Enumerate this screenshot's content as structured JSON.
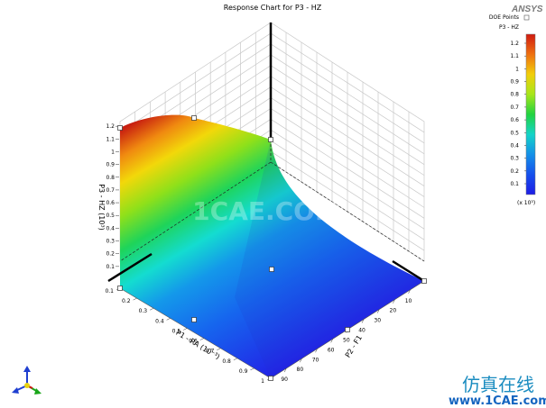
{
  "header": {
    "title": "Response Chart for P3 - HZ",
    "logo_text": "ANSYS"
  },
  "legend": {
    "doe_points_label": "DOE Points",
    "series_label": "P3 - HZ",
    "scale_note": "(x 10³)",
    "colorbar_ticks": [
      "1.2",
      "1.1",
      "1",
      "0.9",
      "0.8",
      "0.7",
      "0.6",
      "0.5",
      "0.4",
      "0.3",
      "0.2",
      "0.1"
    ],
    "colorbar_colors": [
      "#d01a10",
      "#ee7010",
      "#f2cf0a",
      "#a7e61a",
      "#21d340",
      "#14d4c8",
      "#1490e8",
      "#1650ec",
      "#1d1ce6"
    ]
  },
  "watermark": {
    "center_text": "1CAE.COM",
    "brand_cn": "仿真在线",
    "brand_url": "www.1CAE.com",
    "brand_url_color": "#1565c0"
  },
  "chart_data": {
    "type": "surface",
    "title": "Response Chart for P3 - HZ",
    "axes": {
      "x": {
        "label": "P2 - F1",
        "range": [
          1,
          100
        ],
        "ticks": [
          "10",
          "20",
          "30",
          "40",
          "50",
          "60",
          "70",
          "80",
          "90"
        ]
      },
      "y": {
        "label": "P1 - RA (10⁻³)",
        "range": [
          0.1,
          1
        ],
        "ticks": [
          "0.1",
          "0.2",
          "0.3",
          "0.4",
          "0.5",
          "0.6",
          "0.7",
          "0.8",
          "0.9",
          "1"
        ]
      },
      "z": {
        "label": "P3 - HZ (10³)",
        "range": [
          0,
          1.3
        ],
        "ticks": [
          "0.1",
          "0.2",
          "0.3",
          "0.4",
          "0.5",
          "0.6",
          "0.7",
          "0.8",
          "0.9",
          "1",
          "1.1",
          "1.2"
        ]
      }
    },
    "surface_corners": [
      {
        "x": 1,
        "y": 0.1,
        "z": 1.2
      },
      {
        "x": 100,
        "y": 0.1,
        "z": 0.02
      },
      {
        "x": 1,
        "y": 1,
        "z": 0.02
      },
      {
        "x": 100,
        "y": 1,
        "z": 0.02
      }
    ],
    "doe_points": [
      {
        "x": 1,
        "y": 0.1,
        "z": 1.2
      },
      {
        "x": 50,
        "y": 0.1,
        "z": 1.27
      },
      {
        "x": 100,
        "y": 0.1,
        "z": 0.02
      },
      {
        "x": 1,
        "y": 0.55,
        "z": 0.02
      },
      {
        "x": 50,
        "y": 0.55,
        "z": 0.02
      },
      {
        "x": 100,
        "y": 0.55,
        "z": 0.02
      },
      {
        "x": 1,
        "y": 1,
        "z": 0.02
      },
      {
        "x": 50,
        "y": 1,
        "z": 0.02
      },
      {
        "x": 100,
        "y": 1,
        "z": 0.02
      }
    ],
    "colorscale": "jet",
    "zlim": [
      0,
      1.3
    ],
    "grid": true,
    "legend_position": "right"
  }
}
